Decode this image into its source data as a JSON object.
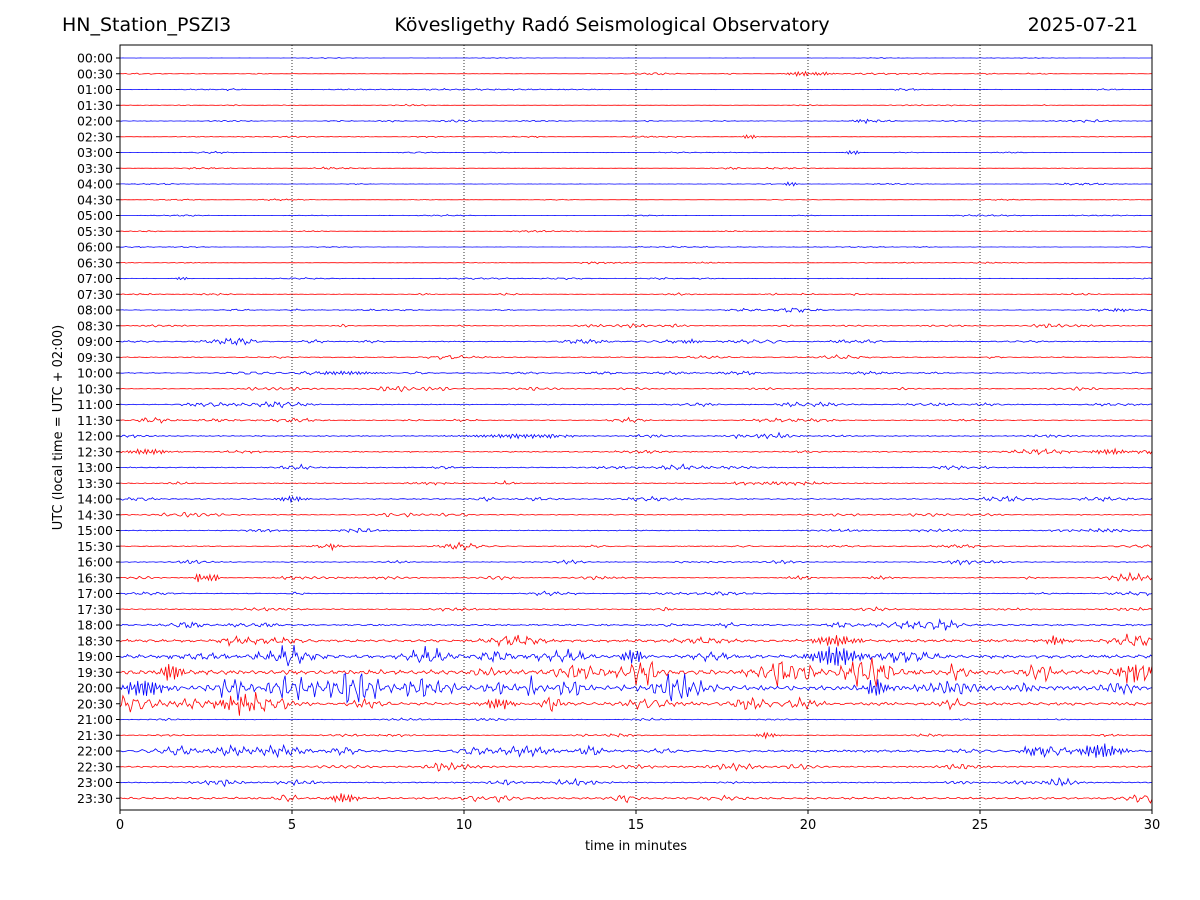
{
  "header": {
    "station": "HN_Station_PSZI3",
    "observatory": "Kövesligethy Radó Seismological Observatory",
    "date": "2025-07-21"
  },
  "chart_data": {
    "type": "line",
    "title": "Kövesligethy Radó Seismological Observatory",
    "xlabel": "time in minutes",
    "ylabel": "UTC (local time = UTC + 02:00)",
    "xlim": [
      0,
      30
    ],
    "x_ticks": [
      0,
      5,
      10,
      15,
      20,
      25,
      30
    ],
    "x_tick_labels": [
      "0",
      "5",
      "10",
      "15",
      "20",
      "25",
      "30"
    ],
    "vertical_grid": "dotted",
    "series_colors": [
      "#0000ff",
      "#ff0000"
    ],
    "rows": [
      {
        "label": "00:00",
        "color": "#0000ff",
        "amp": 0.02
      },
      {
        "label": "00:30",
        "color": "#ff0000",
        "amp": 0.05,
        "events": [
          {
            "t": 19.8,
            "a": 0.25,
            "w": 0.4
          },
          {
            "t": 20.4,
            "a": 0.2,
            "w": 0.3
          }
        ]
      },
      {
        "label": "01:00",
        "color": "#0000ff",
        "amp": 0.05
      },
      {
        "label": "01:30",
        "color": "#ff0000",
        "amp": 0.04
      },
      {
        "label": "02:00",
        "color": "#0000ff",
        "amp": 0.06,
        "events": [
          {
            "t": 21.6,
            "a": 0.15,
            "w": 0.3
          }
        ]
      },
      {
        "label": "02:30",
        "color": "#ff0000",
        "amp": 0.04,
        "events": [
          {
            "t": 18.3,
            "a": 0.25,
            "w": 0.2
          }
        ]
      },
      {
        "label": "03:00",
        "color": "#0000ff",
        "amp": 0.04,
        "events": [
          {
            "t": 21.3,
            "a": 0.25,
            "w": 0.2
          }
        ]
      },
      {
        "label": "03:30",
        "color": "#ff0000",
        "amp": 0.04
      },
      {
        "label": "04:00",
        "color": "#0000ff",
        "amp": 0.04,
        "events": [
          {
            "t": 19.5,
            "a": 0.3,
            "w": 0.15
          }
        ]
      },
      {
        "label": "04:30",
        "color": "#ff0000",
        "amp": 0.03
      },
      {
        "label": "05:00",
        "color": "#0000ff",
        "amp": 0.04
      },
      {
        "label": "05:30",
        "color": "#ff0000",
        "amp": 0.03
      },
      {
        "label": "06:00",
        "color": "#0000ff",
        "amp": 0.03
      },
      {
        "label": "06:30",
        "color": "#ff0000",
        "amp": 0.04
      },
      {
        "label": "07:00",
        "color": "#0000ff",
        "amp": 0.06,
        "events": [
          {
            "t": 1.8,
            "a": 0.2,
            "w": 0.15
          }
        ]
      },
      {
        "label": "07:30",
        "color": "#ff0000",
        "amp": 0.07
      },
      {
        "label": "08:00",
        "color": "#0000ff",
        "amp": 0.08,
        "events": [
          {
            "t": 28.9,
            "a": 0.2,
            "w": 0.3
          }
        ]
      },
      {
        "label": "08:30",
        "color": "#ff0000",
        "amp": 0.09
      },
      {
        "label": "09:00",
        "color": "#0000ff",
        "amp": 0.12,
        "events": [
          {
            "t": 16.5,
            "a": 0.2,
            "w": 0.4
          }
        ]
      },
      {
        "label": "09:30",
        "color": "#ff0000",
        "amp": 0.12
      },
      {
        "label": "10:00",
        "color": "#0000ff",
        "amp": 0.12,
        "events": [
          {
            "t": 6.5,
            "a": 0.2,
            "w": 1.0
          }
        ]
      },
      {
        "label": "10:30",
        "color": "#ff0000",
        "amp": 0.1
      },
      {
        "label": "11:00",
        "color": "#0000ff",
        "amp": 0.12
      },
      {
        "label": "11:30",
        "color": "#ff0000",
        "amp": 0.12
      },
      {
        "label": "12:00",
        "color": "#0000ff",
        "amp": 0.12,
        "events": [
          {
            "t": 11.5,
            "a": 0.2,
            "w": 1.5
          }
        ]
      },
      {
        "label": "12:30",
        "color": "#ff0000",
        "amp": 0.16,
        "events": [
          {
            "t": 0.8,
            "a": 0.3,
            "w": 0.6
          },
          {
            "t": 28.8,
            "a": 0.3,
            "w": 0.5
          }
        ]
      },
      {
        "label": "13:00",
        "color": "#0000ff",
        "amp": 0.14
      },
      {
        "label": "13:30",
        "color": "#ff0000",
        "amp": 0.12
      },
      {
        "label": "14:00",
        "color": "#0000ff",
        "amp": 0.14,
        "events": [
          {
            "t": 5.0,
            "a": 0.3,
            "w": 0.4
          }
        ]
      },
      {
        "label": "14:30",
        "color": "#ff0000",
        "amp": 0.12
      },
      {
        "label": "15:00",
        "color": "#0000ff",
        "amp": 0.12
      },
      {
        "label": "15:30",
        "color": "#ff0000",
        "amp": 0.12,
        "events": [
          {
            "t": 6.1,
            "a": 0.35,
            "w": 0.2
          }
        ]
      },
      {
        "label": "16:00",
        "color": "#0000ff",
        "amp": 0.1
      },
      {
        "label": "16:30",
        "color": "#ff0000",
        "amp": 0.1,
        "events": [
          {
            "t": 2.3,
            "a": 0.5,
            "w": 0.15
          },
          {
            "t": 2.7,
            "a": 0.55,
            "w": 0.15
          }
        ]
      },
      {
        "label": "17:00",
        "color": "#0000ff",
        "amp": 0.1
      },
      {
        "label": "17:30",
        "color": "#ff0000",
        "amp": 0.14
      },
      {
        "label": "18:00",
        "color": "#0000ff",
        "amp": 0.22
      },
      {
        "label": "18:30",
        "color": "#ff0000",
        "amp": 0.38,
        "events": [
          {
            "t": 20.8,
            "a": 0.6,
            "w": 0.6
          },
          {
            "t": 27.2,
            "a": 0.5,
            "w": 0.3
          }
        ]
      },
      {
        "label": "19:00",
        "color": "#0000ff",
        "amp": 0.48,
        "events": [
          {
            "t": 20.8,
            "a": 1.2,
            "w": 0.6
          },
          {
            "t": 14.9,
            "a": 0.8,
            "w": 0.3
          }
        ]
      },
      {
        "label": "19:30",
        "color": "#ff0000",
        "amp": 0.65,
        "events": [
          {
            "t": 1.5,
            "a": 1.0,
            "w": 0.3
          },
          {
            "t": 29.4,
            "a": 1.1,
            "w": 0.3
          }
        ]
      },
      {
        "label": "20:00",
        "color": "#0000ff",
        "amp": 0.7,
        "events": [
          {
            "t": 0.7,
            "a": 1.0,
            "w": 0.5
          },
          {
            "t": 22.0,
            "a": 1.0,
            "w": 0.3
          }
        ]
      },
      {
        "label": "20:30",
        "color": "#ff0000",
        "amp": 0.45,
        "events": [
          {
            "t": 3.5,
            "a": 0.7,
            "w": 0.8
          },
          {
            "t": 11.0,
            "a": 0.6,
            "w": 0.4
          }
        ]
      },
      {
        "label": "21:00",
        "color": "#0000ff",
        "amp": 0.08
      },
      {
        "label": "21:30",
        "color": "#ff0000",
        "amp": 0.1,
        "events": [
          {
            "t": 18.8,
            "a": 0.3,
            "w": 0.3
          }
        ]
      },
      {
        "label": "22:00",
        "color": "#0000ff",
        "amp": 0.32,
        "events": [
          {
            "t": 28.5,
            "a": 0.8,
            "w": 0.6
          },
          {
            "t": 26.6,
            "a": 0.5,
            "w": 0.4
          }
        ]
      },
      {
        "label": "22:30",
        "color": "#ff0000",
        "amp": 0.2
      },
      {
        "label": "23:00",
        "color": "#0000ff",
        "amp": 0.16
      },
      {
        "label": "23:30",
        "color": "#ff0000",
        "amp": 0.28,
        "events": [
          {
            "t": 6.5,
            "a": 0.5,
            "w": 0.4
          }
        ]
      }
    ]
  }
}
